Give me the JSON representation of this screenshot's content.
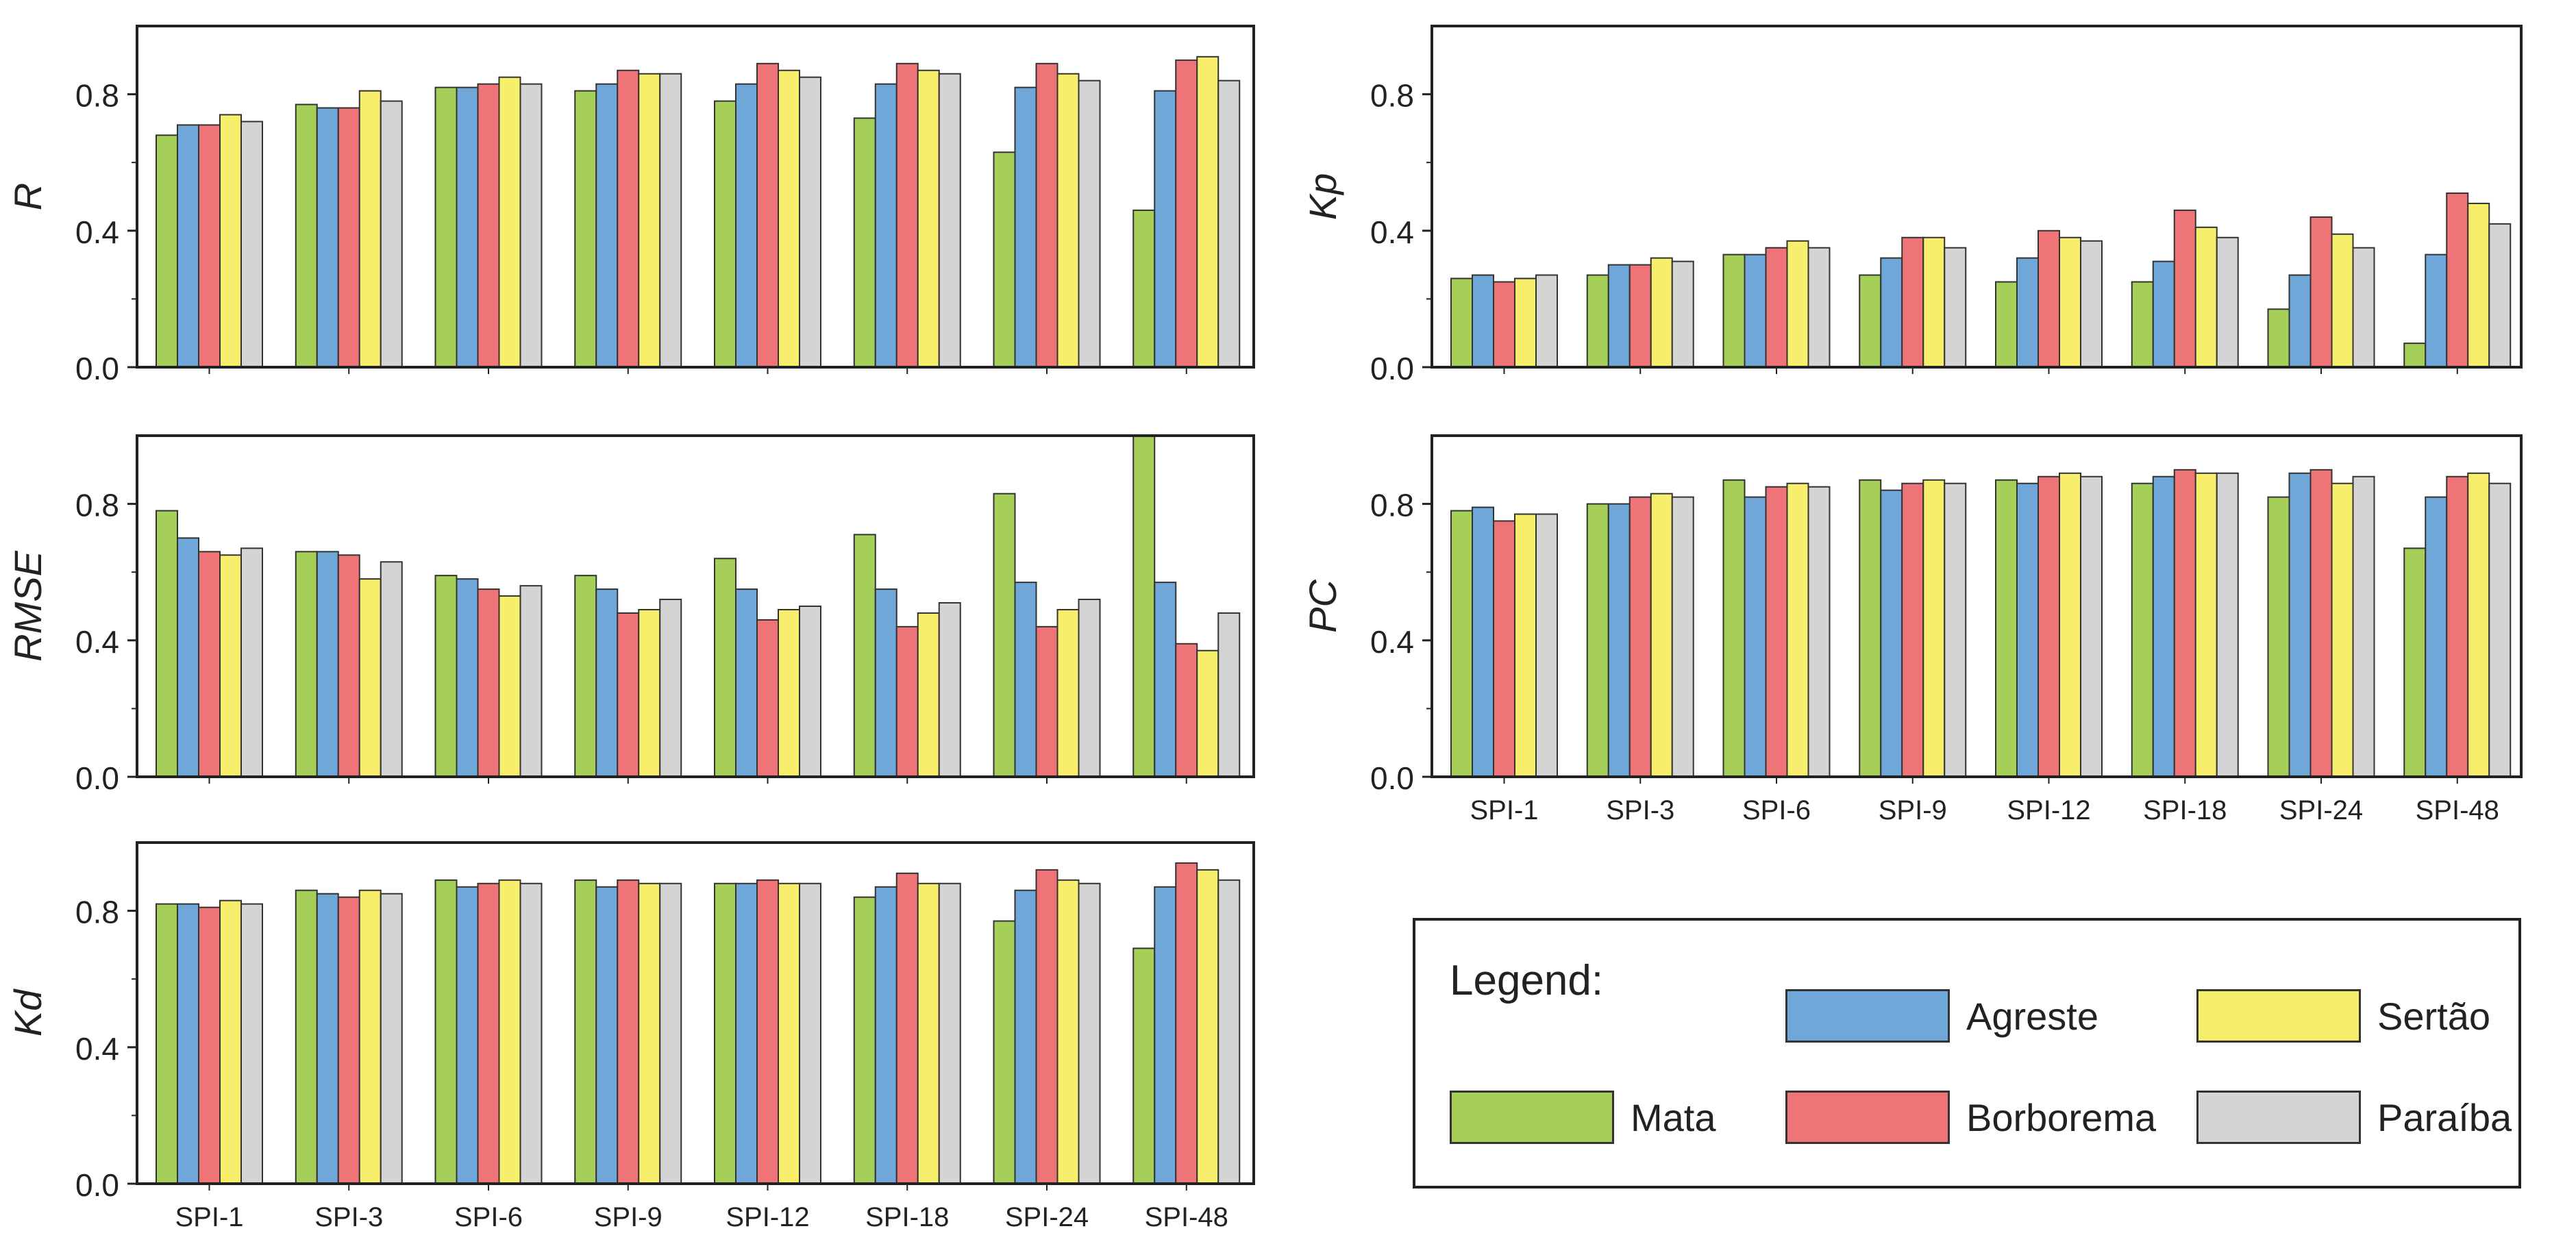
{
  "chart_data": [
    {
      "id": "R",
      "type": "bar",
      "ylabel": "R",
      "ylim": [
        0,
        1.0
      ],
      "yticks": [
        0.0,
        0.4,
        0.8
      ],
      "categories": [
        "SPI-1",
        "SPI-3",
        "SPI-6",
        "SPI-9",
        "SPI-12",
        "SPI-18",
        "SPI-24",
        "SPI-48"
      ],
      "show_xticklabels": false,
      "series": [
        {
          "name": "Mata",
          "values": [
            0.68,
            0.77,
            0.82,
            0.81,
            0.78,
            0.73,
            0.63,
            0.46
          ]
        },
        {
          "name": "Agreste",
          "values": [
            0.71,
            0.76,
            0.82,
            0.83,
            0.83,
            0.83,
            0.82,
            0.81
          ]
        },
        {
          "name": "Borborema",
          "values": [
            0.71,
            0.76,
            0.83,
            0.87,
            0.89,
            0.89,
            0.89,
            0.9
          ]
        },
        {
          "name": "Sertão",
          "values": [
            0.74,
            0.81,
            0.85,
            0.86,
            0.87,
            0.87,
            0.86,
            0.91
          ]
        },
        {
          "name": "Paraíba",
          "values": [
            0.72,
            0.78,
            0.83,
            0.86,
            0.85,
            0.86,
            0.84,
            0.84
          ]
        }
      ]
    },
    {
      "id": "RMSE",
      "type": "bar",
      "ylabel": "RMSE",
      "ylim": [
        0,
        1.0
      ],
      "yticks": [
        0.0,
        0.4,
        0.8
      ],
      "categories": [
        "SPI-1",
        "SPI-3",
        "SPI-6",
        "SPI-9",
        "SPI-12",
        "SPI-18",
        "SPI-24",
        "SPI-48"
      ],
      "show_xticklabels": false,
      "series": [
        {
          "name": "Mata",
          "values": [
            0.78,
            0.66,
            0.59,
            0.59,
            0.64,
            0.71,
            0.83,
            1.0
          ]
        },
        {
          "name": "Agreste",
          "values": [
            0.7,
            0.66,
            0.58,
            0.55,
            0.55,
            0.55,
            0.57,
            0.57
          ]
        },
        {
          "name": "Borborema",
          "values": [
            0.66,
            0.65,
            0.55,
            0.48,
            0.46,
            0.44,
            0.44,
            0.39
          ]
        },
        {
          "name": "Sertão",
          "values": [
            0.65,
            0.58,
            0.53,
            0.49,
            0.49,
            0.48,
            0.49,
            0.37
          ]
        },
        {
          "name": "Paraíba",
          "values": [
            0.67,
            0.63,
            0.56,
            0.52,
            0.5,
            0.51,
            0.52,
            0.48
          ]
        }
      ]
    },
    {
      "id": "Kd",
      "type": "bar",
      "ylabel": "Kd",
      "ylim": [
        0,
        1.0
      ],
      "yticks": [
        0.0,
        0.4,
        0.8
      ],
      "categories": [
        "SPI-1",
        "SPI-3",
        "SPI-6",
        "SPI-9",
        "SPI-12",
        "SPI-18",
        "SPI-24",
        "SPI-48"
      ],
      "show_xticklabels": true,
      "series": [
        {
          "name": "Mata",
          "values": [
            0.82,
            0.86,
            0.89,
            0.89,
            0.88,
            0.84,
            0.77,
            0.69
          ]
        },
        {
          "name": "Agreste",
          "values": [
            0.82,
            0.85,
            0.87,
            0.87,
            0.88,
            0.87,
            0.86,
            0.87
          ]
        },
        {
          "name": "Borborema",
          "values": [
            0.81,
            0.84,
            0.88,
            0.89,
            0.89,
            0.91,
            0.92,
            0.94
          ]
        },
        {
          "name": "Sertão",
          "values": [
            0.83,
            0.86,
            0.89,
            0.88,
            0.88,
            0.88,
            0.89,
            0.92
          ]
        },
        {
          "name": "Paraíba",
          "values": [
            0.82,
            0.85,
            0.88,
            0.88,
            0.88,
            0.88,
            0.88,
            0.89
          ]
        }
      ]
    },
    {
      "id": "Kp",
      "type": "bar",
      "ylabel": "Kp",
      "ylim": [
        0,
        1.0
      ],
      "yticks": [
        0.0,
        0.4,
        0.8
      ],
      "categories": [
        "SPI-1",
        "SPI-3",
        "SPI-6",
        "SPI-9",
        "SPI-12",
        "SPI-18",
        "SPI-24",
        "SPI-48"
      ],
      "show_xticklabels": false,
      "series": [
        {
          "name": "Mata",
          "values": [
            0.26,
            0.27,
            0.33,
            0.27,
            0.25,
            0.25,
            0.17,
            0.07
          ]
        },
        {
          "name": "Agreste",
          "values": [
            0.27,
            0.3,
            0.33,
            0.32,
            0.32,
            0.31,
            0.27,
            0.33
          ]
        },
        {
          "name": "Borborema",
          "values": [
            0.25,
            0.3,
            0.35,
            0.38,
            0.4,
            0.46,
            0.44,
            0.51
          ]
        },
        {
          "name": "Sertão",
          "values": [
            0.26,
            0.32,
            0.37,
            0.38,
            0.38,
            0.41,
            0.39,
            0.48
          ]
        },
        {
          "name": "Paraíba",
          "values": [
            0.27,
            0.31,
            0.35,
            0.35,
            0.37,
            0.38,
            0.35,
            0.42
          ]
        }
      ]
    },
    {
      "id": "PC",
      "type": "bar",
      "ylabel": "PC",
      "ylim": [
        0,
        1.0
      ],
      "yticks": [
        0.0,
        0.4,
        0.8
      ],
      "categories": [
        "SPI-1",
        "SPI-3",
        "SPI-6",
        "SPI-9",
        "SPI-12",
        "SPI-18",
        "SPI-24",
        "SPI-48"
      ],
      "show_xticklabels": true,
      "series": [
        {
          "name": "Mata",
          "values": [
            0.78,
            0.8,
            0.87,
            0.87,
            0.87,
            0.86,
            0.82,
            0.67
          ]
        },
        {
          "name": "Agreste",
          "values": [
            0.79,
            0.8,
            0.82,
            0.84,
            0.86,
            0.88,
            0.89,
            0.82
          ]
        },
        {
          "name": "Borborema",
          "values": [
            0.75,
            0.82,
            0.85,
            0.86,
            0.88,
            0.9,
            0.9,
            0.88
          ]
        },
        {
          "name": "Sertão",
          "values": [
            0.77,
            0.83,
            0.86,
            0.87,
            0.89,
            0.89,
            0.86,
            0.89
          ]
        },
        {
          "name": "Paraíba",
          "values": [
            0.77,
            0.82,
            0.85,
            0.86,
            0.88,
            0.89,
            0.88,
            0.86
          ]
        }
      ]
    }
  ],
  "legend": {
    "title": "Legend:",
    "items": [
      {
        "name": "Mata",
        "color": "#a6cf5a"
      },
      {
        "name": "Agreste",
        "color": "#6fa7d9"
      },
      {
        "name": "Borborema",
        "color": "#ef7478"
      },
      {
        "name": "Sertão",
        "color": "#f7ef6b"
      },
      {
        "name": "Paraíba",
        "color": "#d4d4d4"
      }
    ]
  }
}
